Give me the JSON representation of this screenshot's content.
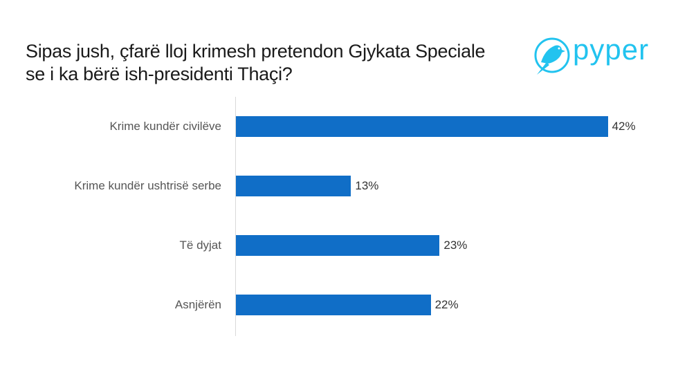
{
  "title": "Sipas jush, çfarë lloj krimesh pretendon Gjykata Speciale se i ka bërë ish-presidenti Thaçi?",
  "logo": {
    "text": "pyper",
    "icon": "bird-in-circle-icon",
    "color": "#22c3ef"
  },
  "chart_data": {
    "type": "bar",
    "orientation": "horizontal",
    "title": "Sipas jush, çfarë lloj krimesh pretendon Gjykata Speciale se i ka bërë ish-presidenti Thaçi?",
    "categories": [
      "Krime kundër civilëve",
      "Krime kundër ushtrisë serbe",
      "Të dyjat",
      "Asnjërën"
    ],
    "values": [
      42,
      13,
      23,
      22
    ],
    "value_labels": [
      "42%",
      "13%",
      "23%",
      "22%"
    ],
    "xlabel": "",
    "ylabel": "",
    "xlim": [
      0,
      45
    ],
    "grid": false,
    "legend": null,
    "bar_color": "#106ec7"
  }
}
